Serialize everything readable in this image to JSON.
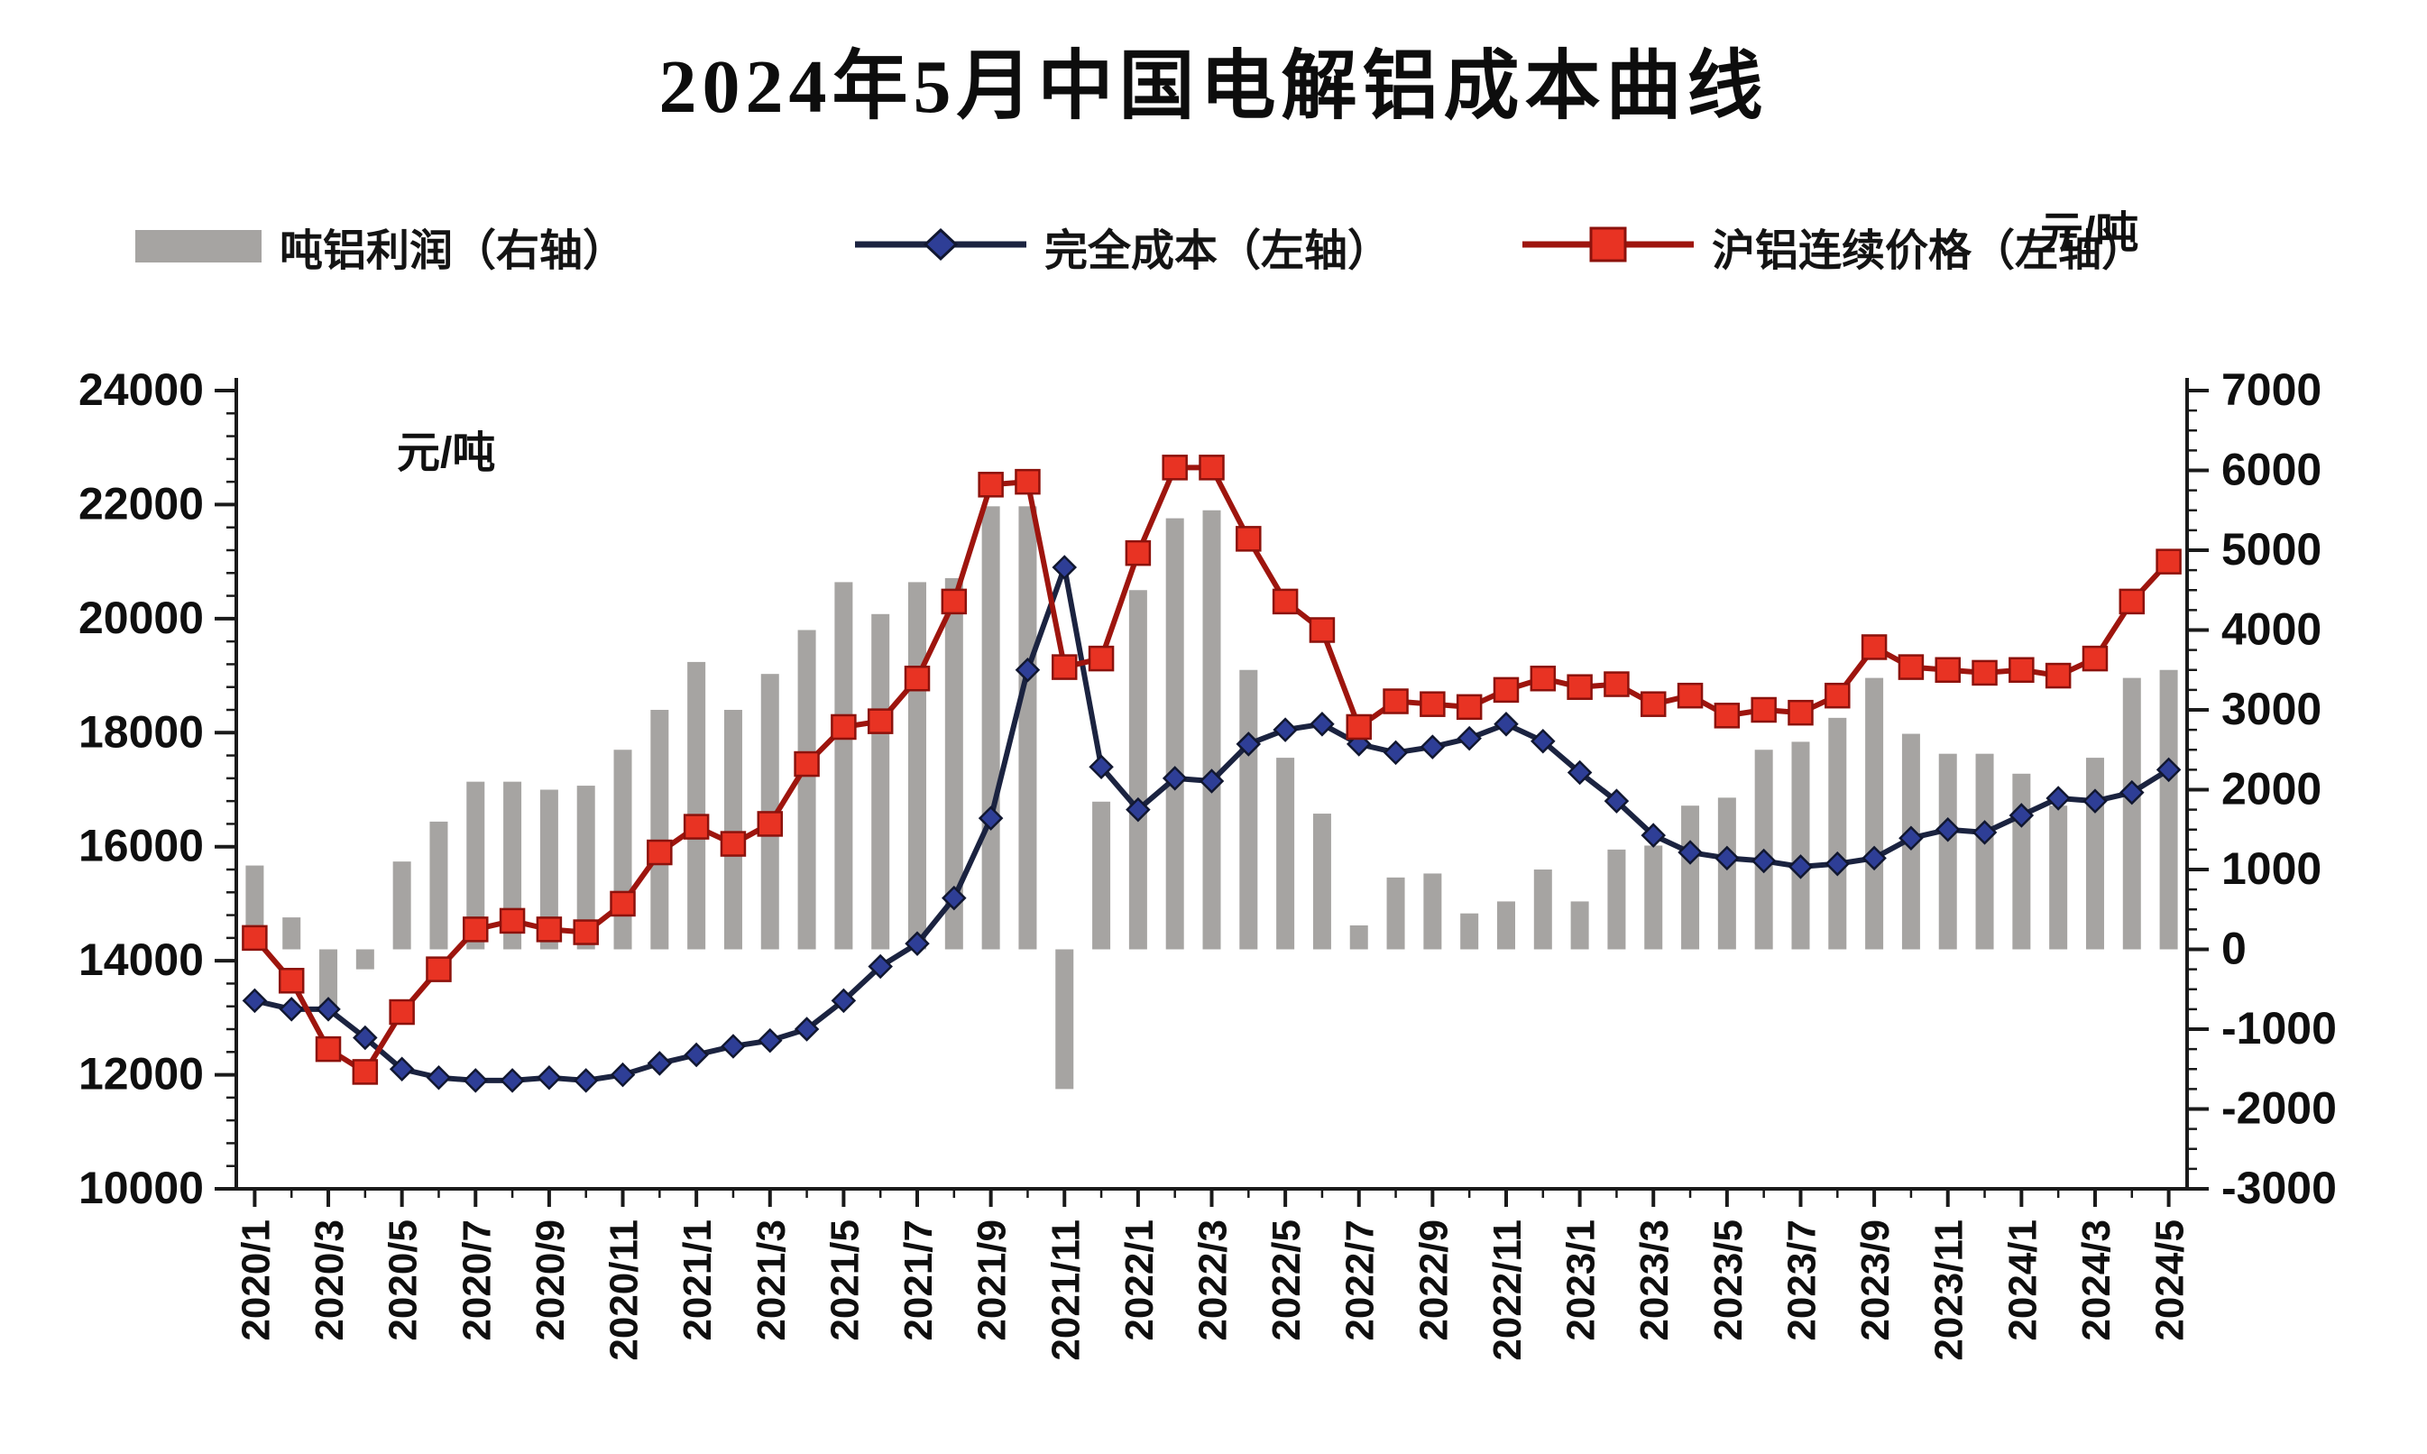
{
  "title": "2024年5月中国电解铝成本曲线",
  "legend": [
    {
      "label": "吨铝利润（右轴）",
      "type": "bar",
      "color": "#a6a4a2"
    },
    {
      "label": "完全成本（左轴）",
      "type": "line-diamond",
      "color": "#2e3e96",
      "line_color": "#1b2340"
    },
    {
      "label": "沪铝连续价格（左轴）",
      "type": "line-square",
      "color": "#e83323",
      "line_color": "#9e150e"
    }
  ],
  "axis_units": {
    "left": "元/吨",
    "right": "元/吨"
  },
  "chart_data": {
    "type": "bar",
    "title": "2024年5月中国电解铝成本曲线",
    "xlabel": "",
    "ylabel_left": "元/吨",
    "ylabel_right": "元/吨",
    "grid": false,
    "legend_position": "top",
    "x_label_every": 2,
    "left_axis": {
      "min": 10000,
      "max": 24000,
      "step": 2000,
      "minor_step": 400,
      "tick_labels": [
        "24000",
        "22000",
        "20000",
        "18000",
        "16000",
        "14000",
        "12000",
        "10000"
      ]
    },
    "right_axis": {
      "min": -3000,
      "max": 7000,
      "step": 1000,
      "minor_step": 250,
      "tick_labels": [
        "7000",
        "6000",
        "5000",
        "4000",
        "3000",
        "2000",
        "1000",
        "0",
        "-1000",
        "-2000",
        "-3000"
      ]
    },
    "categories": [
      "2020/1",
      "2020/2",
      "2020/3",
      "2020/4",
      "2020/5",
      "2020/6",
      "2020/7",
      "2020/8",
      "2020/9",
      "2020/10",
      "2020/11",
      "2020/12",
      "2021/1",
      "2021/2",
      "2021/3",
      "2021/4",
      "2021/5",
      "2021/6",
      "2021/7",
      "2021/8",
      "2021/9",
      "2021/10",
      "2021/11",
      "2021/12",
      "2022/1",
      "2022/2",
      "2022/3",
      "2022/4",
      "2022/5",
      "2022/6",
      "2022/7",
      "2022/8",
      "2022/9",
      "2022/10",
      "2022/11",
      "2022/12",
      "2023/1",
      "2023/2",
      "2023/3",
      "2023/4",
      "2023/5",
      "2023/6",
      "2023/7",
      "2023/8",
      "2023/9",
      "2023/10",
      "2023/11",
      "2023/12",
      "2024/1",
      "2024/2",
      "2024/3",
      "2024/4",
      "2024/5"
    ],
    "series": [
      {
        "name": "吨铝利润（右轴）",
        "type": "bar",
        "axis": "right",
        "color": "#a6a4a2",
        "values": [
          1050,
          400,
          -800,
          -250,
          1100,
          1600,
          2100,
          2100,
          2000,
          2050,
          2500,
          3000,
          3600,
          3000,
          3450,
          4000,
          4600,
          4200,
          4600,
          4650,
          5550,
          5550,
          -1750,
          1850,
          4500,
          5400,
          5500,
          3500,
          2400,
          1700,
          300,
          900,
          950,
          450,
          600,
          1000,
          600,
          1250,
          1300,
          1800,
          1900,
          2500,
          2600,
          2900,
          3400,
          2700,
          2450,
          2450,
          2200,
          1800,
          2400,
          3400,
          3500
        ]
      },
      {
        "name": "完全成本（左轴）",
        "type": "line",
        "marker": "diamond",
        "axis": "left",
        "color": "#2e3e96",
        "line_color": "#1b2340",
        "values": [
          13300,
          13150,
          13150,
          12650,
          12100,
          11950,
          11900,
          11900,
          11950,
          11900,
          12000,
          12200,
          12350,
          12500,
          12600,
          12800,
          13300,
          13900,
          14300,
          15100,
          16500,
          19100,
          20900,
          17400,
          16650,
          17200,
          17150,
          17800,
          18050,
          18150,
          17800,
          17650,
          17750,
          17900,
          18150,
          17850,
          17300,
          16800,
          16200,
          15900,
          15800,
          15750,
          15650,
          15700,
          15800,
          16150,
          16300,
          16250,
          16550,
          16850,
          16800,
          16950,
          17350
        ]
      },
      {
        "name": "沪铝连续价格（左轴）",
        "type": "line",
        "marker": "square",
        "axis": "left",
        "color": "#e83323",
        "line_color": "#9e150e",
        "values": [
          14400,
          13650,
          12450,
          12050,
          13100,
          13850,
          14550,
          14700,
          14550,
          14500,
          15000,
          15900,
          16350,
          16050,
          16400,
          17450,
          18100,
          18200,
          18950,
          20300,
          22350,
          22400,
          19150,
          19300,
          21150,
          22650,
          22650,
          21400,
          20300,
          19800,
          18100,
          18550,
          18500,
          18450,
          18750,
          18950,
          18800,
          18850,
          18500,
          18650,
          18300,
          18400,
          18350,
          18650,
          19500,
          19150,
          19100,
          19050,
          19100,
          19000,
          19300,
          20300,
          21000
        ]
      }
    ]
  }
}
